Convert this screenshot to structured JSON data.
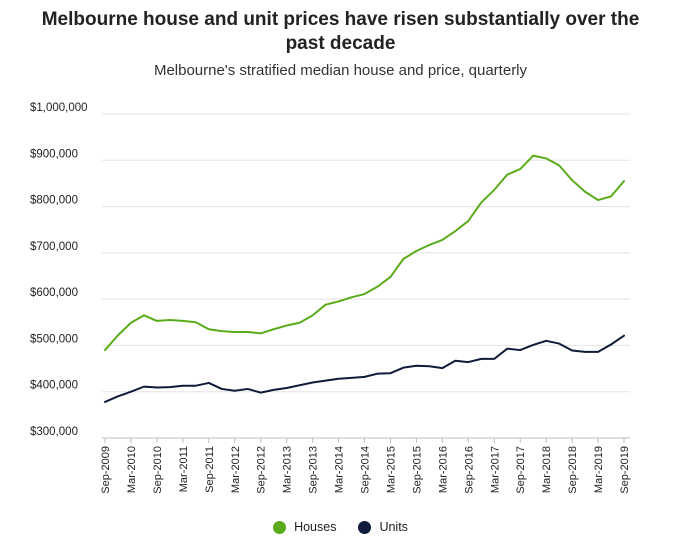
{
  "chart_data": {
    "type": "line",
    "title_lines": [
      "Melbourne house and unit prices have risen substantially over the",
      "past decade"
    ],
    "subtitle": "Melbourne's stratified median house and price, quarterly",
    "xlabel": "",
    "ylabel": "",
    "ylim": [
      300000,
      1000000
    ],
    "yticks": [
      300000,
      400000,
      500000,
      600000,
      700000,
      800000,
      900000,
      1000000
    ],
    "ytick_labels": [
      "$300,000",
      "$400,000",
      "$500,000",
      "$600,000",
      "$700,000",
      "$800,000",
      "$900,000",
      "$1,000,000"
    ],
    "x": [
      "Sep-2009",
      "Dec-2009",
      "Mar-2010",
      "Jun-2010",
      "Sep-2010",
      "Dec-2010",
      "Mar-2011",
      "Jun-2011",
      "Sep-2011",
      "Dec-2011",
      "Mar-2012",
      "Jun-2012",
      "Sep-2012",
      "Dec-2012",
      "Mar-2013",
      "Jun-2013",
      "Sep-2013",
      "Dec-2013",
      "Mar-2014",
      "Jun-2014",
      "Sep-2014",
      "Dec-2014",
      "Mar-2015",
      "Jun-2015",
      "Sep-2015",
      "Dec-2015",
      "Mar-2016",
      "Jun-2016",
      "Sep-2016",
      "Dec-2016",
      "Mar-2017",
      "Jun-2017",
      "Sep-2017",
      "Dec-2017",
      "Mar-2018",
      "Jun-2018",
      "Sep-2018",
      "Dec-2018",
      "Mar-2019",
      "Jun-2019",
      "Sep-2019"
    ],
    "x_tick_labels": [
      "Sep-2009",
      "Mar-2010",
      "Sep-2010",
      "Mar-2011",
      "Sep-2011",
      "Mar-2012",
      "Sep-2012",
      "Mar-2013",
      "Sep-2013",
      "Mar-2014",
      "Sep-2014",
      "Mar-2015",
      "Sep-2015",
      "Mar-2016",
      "Sep-2016",
      "Mar-2017",
      "Sep-2017",
      "Mar-2018",
      "Sep-2018",
      "Mar-2019",
      "Sep-2019"
    ],
    "series": [
      {
        "name": "Houses",
        "color": "#5aab1a",
        "values": [
          490000,
          522000,
          549000,
          565000,
          553000,
          555000,
          553000,
          550000,
          535000,
          531000,
          529000,
          529000,
          526000,
          535000,
          543000,
          549000,
          565000,
          588000,
          595000,
          604000,
          611000,
          627000,
          648000,
          687000,
          704000,
          717000,
          728000,
          747000,
          769000,
          809000,
          836000,
          869000,
          881000,
          910000,
          904000,
          889000,
          857000,
          832000,
          814000,
          822000,
          855000
        ]
      },
      {
        "name": "Units",
        "color": "#101b3a",
        "values": [
          378000,
          390000,
          400000,
          411000,
          409000,
          410000,
          413000,
          413000,
          419000,
          406000,
          402000,
          406000,
          398000,
          404000,
          408000,
          414000,
          420000,
          424000,
          428000,
          430000,
          432000,
          439000,
          440000,
          452000,
          456000,
          455000,
          451000,
          467000,
          464000,
          471000,
          471000,
          493000,
          490000,
          501000,
          510000,
          504000,
          489000,
          486000,
          486000,
          502000,
          521000
        ]
      }
    ],
    "grid": true,
    "legend_position": "bottom-center"
  }
}
